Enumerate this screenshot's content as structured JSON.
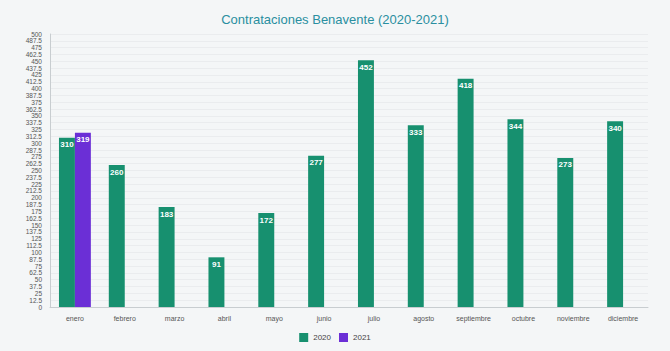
{
  "chart_data": {
    "type": "bar",
    "title": "Contrataciones Benavente (2020-2021)",
    "categories": [
      "enero",
      "febrero",
      "marzo",
      "abril",
      "mayo",
      "junio",
      "julio",
      "agosto",
      "septiembre",
      "octubre",
      "noviembre",
      "diciembre"
    ],
    "series": [
      {
        "name": "2020",
        "color": "#17906f",
        "values": [
          310,
          260,
          183,
          91,
          172,
          277,
          452,
          333,
          418,
          344,
          273,
          340
        ]
      },
      {
        "name": "2021",
        "color": "#6b2fd6",
        "values": [
          319,
          null,
          null,
          null,
          null,
          null,
          null,
          null,
          null,
          null,
          null,
          null
        ]
      }
    ],
    "ylim": [
      0,
      500
    ],
    "yticks": [
      0,
      12.5,
      25,
      37.5,
      50,
      62.5,
      75,
      87.5,
      100,
      112.5,
      125,
      137.5,
      150,
      162.5,
      175,
      187.5,
      200,
      212.5,
      225,
      237.5,
      250,
      262.5,
      275,
      287.5,
      300,
      312.5,
      325,
      337.5,
      350,
      362.5,
      375,
      387.5,
      400,
      412.5,
      425,
      437.5,
      450,
      462.5,
      475,
      487.5,
      500
    ],
    "grid": true,
    "legend": "bottom",
    "data_labels": true
  }
}
